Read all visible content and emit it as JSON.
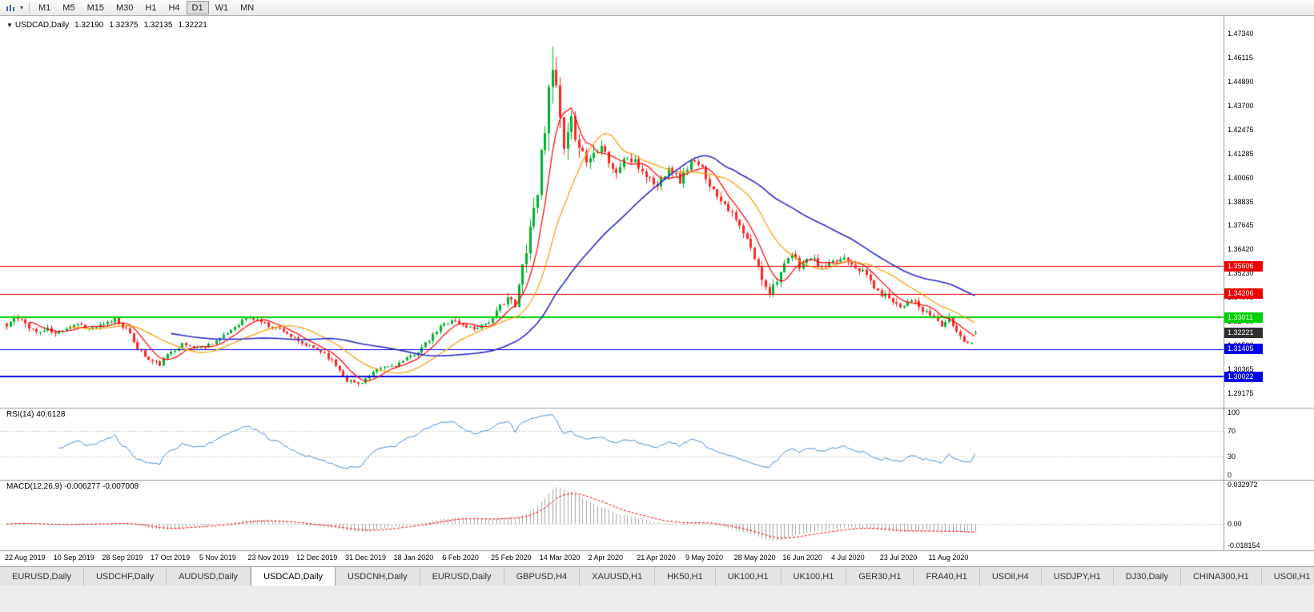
{
  "toolbar": {
    "timeframes": [
      {
        "label": "M1"
      },
      {
        "label": "M5"
      },
      {
        "label": "M15"
      },
      {
        "label": "M30"
      },
      {
        "label": "H1"
      },
      {
        "label": "H4"
      },
      {
        "label": "D1",
        "active": true
      },
      {
        "label": "W1"
      },
      {
        "label": "MN"
      }
    ]
  },
  "chart": {
    "symbol_line": {
      "dropdown_glyph": "▼",
      "symbol": "USDCAD,Daily",
      "open": "1.32190",
      "high": "1.32375",
      "low": "1.32135",
      "close": "1.32221"
    },
    "price_axis_labels": [
      "1.47340",
      "1.46115",
      "1.44890",
      "1.43700",
      "1.42475",
      "1.41285",
      "1.40060",
      "1.38835",
      "1.37645",
      "1.36420",
      "1.35230",
      "1.34005",
      "1.32780",
      "1.31590",
      "1.30365",
      "1.29175"
    ],
    "hlines": [
      {
        "price": 1.35606,
        "label": "1.35606",
        "color": "#ee0000",
        "width": 1
      },
      {
        "price": 1.34206,
        "label": "1.34206",
        "color": "#ee0000",
        "width": 1
      },
      {
        "price": 1.33011,
        "label": "1.33011",
        "color": "#00d000",
        "width": 2
      },
      {
        "price": 1.31405,
        "label": "1.31405",
        "color": "#0000ee",
        "width": 1
      },
      {
        "price": 1.30022,
        "label": "1.30022",
        "color": "#0000ee",
        "width": 2
      }
    ],
    "current_price": {
      "price": 1.32221,
      "label": "1.32221",
      "badge_color": "#2f2f2f"
    },
    "date_labels": [
      {
        "label": "22 Aug 2019",
        "i": 0
      },
      {
        "label": "10 Sep 2019",
        "i": 13
      },
      {
        "label": "28 Sep 2019",
        "i": 26
      },
      {
        "label": "17 Oct 2019",
        "i": 39
      },
      {
        "label": "5 Nov 2019",
        "i": 52
      },
      {
        "label": "23 Nov 2019",
        "i": 65
      },
      {
        "label": "12 Dec 2019",
        "i": 78
      },
      {
        "label": "31 Dec 2019",
        "i": 91
      },
      {
        "label": "18 Jan 2020",
        "i": 104
      },
      {
        "label": "6 Feb 2020",
        "i": 117
      },
      {
        "label": "25 Feb 2020",
        "i": 130
      },
      {
        "label": "14 Mar 2020",
        "i": 143
      },
      {
        "label": "2 Apr 2020",
        "i": 156
      },
      {
        "label": "21 Apr 2020",
        "i": 169
      },
      {
        "label": "9 May 2020",
        "i": 182
      },
      {
        "label": "28 May 2020",
        "i": 195
      },
      {
        "label": "16 Jun 2020",
        "i": 208
      },
      {
        "label": "4 Jul 2020",
        "i": 221
      },
      {
        "label": "23 Jul 2020",
        "i": 234
      },
      {
        "label": "11 Aug 2020",
        "i": 247
      }
    ],
    "colors": {
      "bull": "#00b22d",
      "bear": "#ff2525",
      "ma_fast": "#ff0000",
      "ma_mid": "#ff9900",
      "ma_slow": "#2b2bd0",
      "rsi_line": "#4a8fd3",
      "macd_hist": "#a6a6a6",
      "macd_signal": "#ff0000"
    },
    "chart_data": {
      "type": "candlestick",
      "symbol": "USDCAD",
      "timeframe": "Daily",
      "count": 260,
      "seed": 11,
      "y_range": [
        1.29175,
        1.4734
      ],
      "extremes": {
        "high": 1.4668,
        "low": 1.2952
      },
      "last_candle": {
        "open": 1.3219,
        "high": 1.32375,
        "low": 1.32135,
        "close": 1.32221
      },
      "moving_averages": [
        {
          "period": 7,
          "color_key": "ma_fast"
        },
        {
          "period": 18,
          "color_key": "ma_mid"
        },
        {
          "period": 45,
          "color_key": "ma_slow"
        }
      ],
      "close_anchors": [
        [
          0,
          1.3255,
          0.0045
        ],
        [
          2,
          1.33,
          0.0045
        ],
        [
          5,
          1.327,
          0.004
        ],
        [
          8,
          1.3225,
          0.0035
        ],
        [
          11,
          1.324,
          0.0035
        ],
        [
          13,
          1.3215,
          0.003
        ],
        [
          16,
          1.325,
          0.003
        ],
        [
          19,
          1.327,
          0.003
        ],
        [
          22,
          1.3245,
          0.003
        ],
        [
          26,
          1.326,
          0.0035
        ],
        [
          29,
          1.3295,
          0.0035
        ],
        [
          32,
          1.324,
          0.003
        ],
        [
          35,
          1.315,
          0.0035
        ],
        [
          38,
          1.3085,
          0.0035
        ],
        [
          41,
          1.3065,
          0.003
        ],
        [
          44,
          1.313,
          0.003
        ],
        [
          47,
          1.3165,
          0.0028
        ],
        [
          50,
          1.315,
          0.0026
        ],
        [
          52,
          1.3145,
          0.0026
        ],
        [
          55,
          1.3175,
          0.0026
        ],
        [
          58,
          1.3205,
          0.0026
        ],
        [
          61,
          1.3255,
          0.0026
        ],
        [
          64,
          1.33,
          0.0026
        ],
        [
          67,
          1.329,
          0.0026
        ],
        [
          70,
          1.326,
          0.0026
        ],
        [
          74,
          1.3235,
          0.0026
        ],
        [
          78,
          1.3175,
          0.0026
        ],
        [
          82,
          1.3145,
          0.0026
        ],
        [
          85,
          1.312,
          0.0028
        ],
        [
          88,
          1.306,
          0.003
        ],
        [
          91,
          1.2985,
          0.0032
        ],
        [
          94,
          1.2965,
          0.003
        ],
        [
          97,
          1.3005,
          0.0028
        ],
        [
          100,
          1.3045,
          0.0026
        ],
        [
          104,
          1.306,
          0.0026
        ],
        [
          107,
          1.309,
          0.0026
        ],
        [
          110,
          1.313,
          0.0026
        ],
        [
          113,
          1.3185,
          0.0026
        ],
        [
          116,
          1.3255,
          0.0028
        ],
        [
          119,
          1.329,
          0.0028
        ],
        [
          122,
          1.326,
          0.0026
        ],
        [
          125,
          1.3245,
          0.0026
        ],
        [
          128,
          1.327,
          0.0028
        ],
        [
          130,
          1.329,
          0.0032
        ],
        [
          132,
          1.336,
          0.004
        ],
        [
          134,
          1.3405,
          0.005
        ],
        [
          136,
          1.335,
          0.006
        ],
        [
          138,
          1.356,
          0.0095
        ],
        [
          140,
          1.376,
          0.011
        ],
        [
          142,
          1.395,
          0.013
        ],
        [
          144,
          1.428,
          0.016
        ],
        [
          145,
          1.452,
          0.019
        ],
        [
          147,
          1.446,
          0.016
        ],
        [
          149,
          1.412,
          0.014
        ],
        [
          151,
          1.428,
          0.011
        ],
        [
          153,
          1.418,
          0.0095
        ],
        [
          155,
          1.409,
          0.0085
        ],
        [
          157,
          1.413,
          0.008
        ],
        [
          159,
          1.419,
          0.0075
        ],
        [
          161,
          1.409,
          0.007
        ],
        [
          163,
          1.402,
          0.0065
        ],
        [
          165,
          1.411,
          0.0062
        ],
        [
          168,
          1.408,
          0.006
        ],
        [
          171,
          1.402,
          0.0058
        ],
        [
          174,
          1.396,
          0.0056
        ],
        [
          177,
          1.407,
          0.0056
        ],
        [
          180,
          1.399,
          0.0054
        ],
        [
          183,
          1.409,
          0.0054
        ],
        [
          186,
          1.405,
          0.005
        ],
        [
          189,
          1.394,
          0.005
        ],
        [
          192,
          1.388,
          0.0048
        ],
        [
          195,
          1.379,
          0.0048
        ],
        [
          198,
          1.369,
          0.0048
        ],
        [
          200,
          1.36,
          0.005
        ],
        [
          202,
          1.35,
          0.0055
        ],
        [
          204,
          1.343,
          0.005
        ],
        [
          206,
          1.3495,
          0.0048
        ],
        [
          208,
          1.356,
          0.0045
        ],
        [
          210,
          1.362,
          0.0042
        ],
        [
          212,
          1.356,
          0.004
        ],
        [
          215,
          1.3605,
          0.0038
        ],
        [
          218,
          1.355,
          0.0038
        ],
        [
          221,
          1.3575,
          0.0038
        ],
        [
          224,
          1.3605,
          0.0038
        ],
        [
          227,
          1.356,
          0.0038
        ],
        [
          230,
          1.3515,
          0.0038
        ],
        [
          233,
          1.3425,
          0.004
        ],
        [
          236,
          1.3405,
          0.0038
        ],
        [
          239,
          1.3355,
          0.0038
        ],
        [
          242,
          1.3395,
          0.0036
        ],
        [
          245,
          1.333,
          0.0036
        ],
        [
          248,
          1.3305,
          0.0034
        ],
        [
          250,
          1.326,
          0.0034
        ],
        [
          252,
          1.3295,
          0.0032
        ],
        [
          254,
          1.323,
          0.0032
        ],
        [
          256,
          1.3185,
          0.003
        ],
        [
          258,
          1.317,
          0.003
        ],
        [
          259,
          1.3222,
          0.0028
        ]
      ]
    }
  },
  "rsi_panel": {
    "title": "RSI(14) 40.6128",
    "period": 14,
    "levels": [
      {
        "label": "100",
        "value": 100
      },
      {
        "label": "70",
        "value": 70,
        "dashed": true
      },
      {
        "label": "30",
        "value": 30,
        "dashed": true
      },
      {
        "label": "0",
        "value": 0
      }
    ]
  },
  "macd_panel": {
    "title": "MACD(12,26,9) -0.006277 -0.007008",
    "fast": 12,
    "slow": 26,
    "signal": 9,
    "axis": [
      {
        "label": "0.032972",
        "value": 0.032972
      },
      {
        "label": "0.00",
        "value": 0
      },
      {
        "label": "-0.018154",
        "value": -0.018154
      }
    ]
  },
  "tabs": [
    {
      "label": "EURUSD,Daily"
    },
    {
      "label": "USDCHF,Daily"
    },
    {
      "label": "AUDUSD,Daily"
    },
    {
      "label": "USDCAD,Daily",
      "active": true
    },
    {
      "label": "USDCNH,Daily"
    },
    {
      "label": "EURUSD,Daily"
    },
    {
      "label": "GBPUSD,H4"
    },
    {
      "label": "XAUUSD,H1"
    },
    {
      "label": "HK50,H1"
    },
    {
      "label": "UK100,H1"
    },
    {
      "label": "UK100,H1"
    },
    {
      "label": "GER30,H1"
    },
    {
      "label": "FRA40,H1"
    },
    {
      "label": "USOil,H4"
    },
    {
      "label": "USDJPY,H1"
    },
    {
      "label": "DJ30,Daily"
    },
    {
      "label": "CHINA300,H1"
    },
    {
      "label": "USOil,H1"
    }
  ]
}
